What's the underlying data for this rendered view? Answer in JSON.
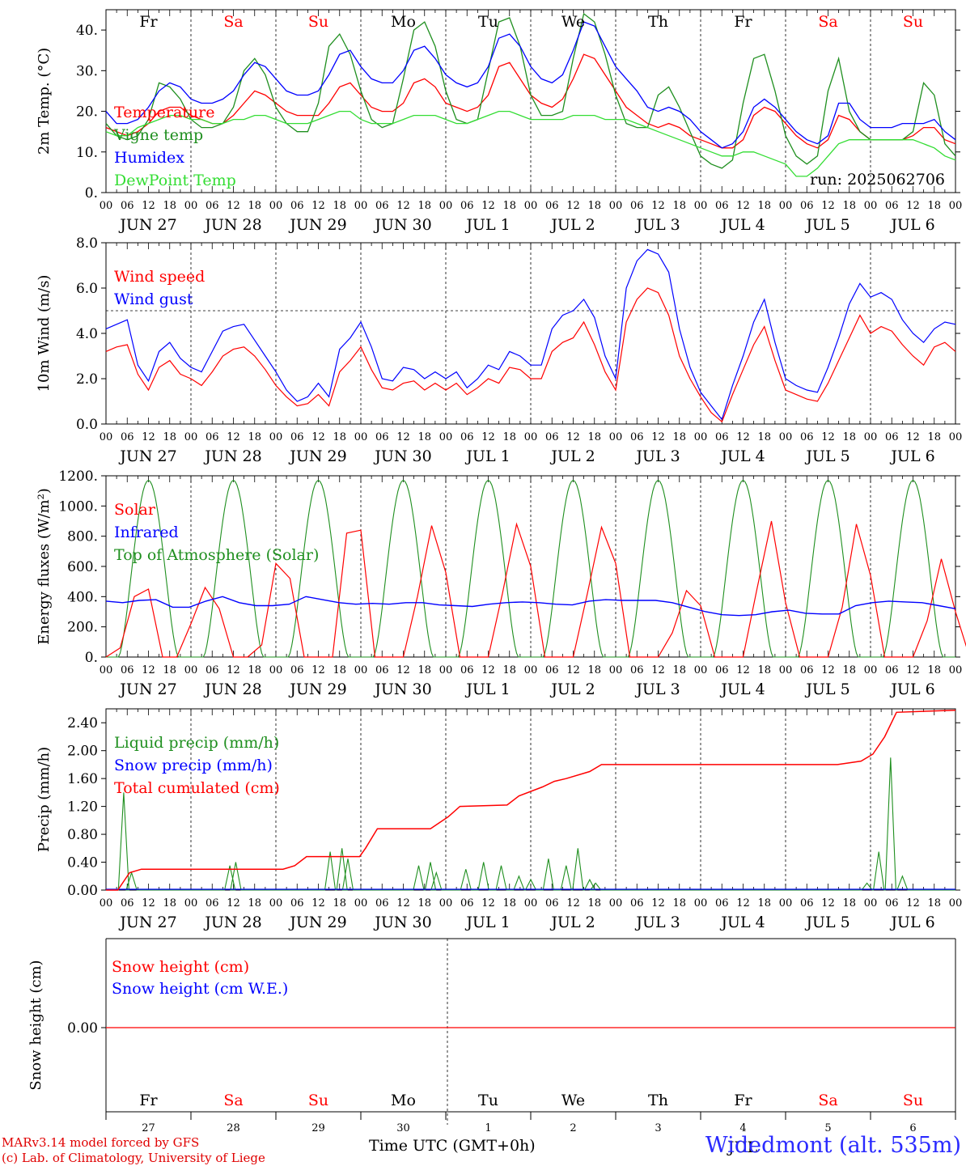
{
  "days_weekday": [
    "Fr",
    "Sa",
    "Su",
    "Mo",
    "Tu",
    "We",
    "Th",
    "Fr",
    "Sa",
    "Su"
  ],
  "weekend_days": [
    "Sa",
    "Su"
  ],
  "days_date": [
    "JUN 27",
    "JUN 28",
    "JUN 29",
    "JUN 30",
    "JUL 1",
    "JUL 2",
    "JUL 3",
    "JUL 4",
    "JUL 5",
    "JUL 6"
  ],
  "hour_ticks": [
    "00",
    "06",
    "12",
    "18"
  ],
  "last_tick": "00",
  "run_label": "run: 2025062706",
  "bottom_day_numbers": [
    "27",
    "28",
    "29",
    "30",
    "1",
    "2",
    "3",
    "4",
    "5",
    "6"
  ],
  "bottom_month": "JUL",
  "x_title": "Time UTC (GMT+0h)",
  "footer_model": "MARv3.14 model forced by GFS",
  "footer_lab": "(c) Lab. of Climatology, University of Liege",
  "location": "Widedmont (alt. 535m)",
  "colors": {
    "red": "#ff0000",
    "green": "#1f8f1f",
    "blue": "#0000ff",
    "lightgreen": "#33dd33"
  },
  "chart_data": [
    {
      "type": "line",
      "ylabel": "2m Temp. (°C)",
      "ylim": [
        0,
        45
      ],
      "yticks": [
        "0.",
        "10.",
        "20.",
        "30.",
        "40."
      ],
      "x": "hours since 2025-06-27 00 UTC, every 3h",
      "series": [
        {
          "name": "Temperature",
          "color": "red",
          "values": [
            16,
            15,
            14,
            15,
            17,
            20,
            21,
            21,
            19,
            18,
            17,
            17,
            19,
            22,
            25,
            24,
            22,
            20,
            19,
            19,
            19,
            22,
            26,
            27,
            24,
            21,
            20,
            20,
            22,
            27,
            28,
            26,
            22,
            21,
            20,
            21,
            24,
            31,
            32,
            28,
            24,
            22,
            21,
            23,
            28,
            34,
            33,
            29,
            25,
            21,
            19,
            17,
            16,
            17,
            16,
            14,
            13,
            12,
            11,
            11,
            13,
            19,
            21,
            20,
            17,
            14,
            12,
            11,
            13,
            19,
            18,
            15,
            13,
            13,
            13,
            13,
            14,
            16,
            16,
            13,
            12
          ]
        },
        {
          "name": "Vigne temp",
          "color": "green",
          "values": [
            17,
            14,
            13,
            14,
            18,
            27,
            26,
            23,
            18,
            16,
            16,
            17,
            21,
            30,
            33,
            29,
            21,
            17,
            15,
            15,
            22,
            36,
            39,
            34,
            25,
            18,
            16,
            17,
            28,
            40,
            42,
            36,
            25,
            18,
            17,
            18,
            30,
            42,
            43,
            36,
            24,
            19,
            19,
            20,
            33,
            44,
            42,
            34,
            24,
            17,
            16,
            16,
            24,
            26,
            21,
            15,
            9,
            7,
            6,
            8,
            22,
            33,
            34,
            25,
            14,
            9,
            7,
            9,
            25,
            33,
            20,
            15,
            13,
            13,
            13,
            13,
            15,
            27,
            24,
            12,
            9
          ]
        },
        {
          "name": "Humidex",
          "color": "blue",
          "values": [
            20,
            17,
            17,
            18,
            21,
            25,
            27,
            26,
            23,
            22,
            22,
            23,
            25,
            29,
            32,
            31,
            28,
            25,
            24,
            24,
            25,
            29,
            34,
            35,
            31,
            28,
            27,
            27,
            30,
            35,
            36,
            33,
            29,
            27,
            26,
            27,
            31,
            38,
            39,
            36,
            31,
            28,
            27,
            29,
            35,
            42,
            41,
            36,
            31,
            28,
            25,
            21,
            20,
            21,
            20,
            18,
            15,
            13,
            11,
            12,
            15,
            21,
            23,
            21,
            18,
            15,
            13,
            12,
            14,
            22,
            22,
            18,
            16,
            16,
            16,
            17,
            17,
            17,
            18,
            15,
            13
          ]
        },
        {
          "name": "DewPoint Temp",
          "color": "lightgreen",
          "values": [
            15,
            14,
            14,
            16,
            17,
            18,
            19,
            19,
            18,
            18,
            17,
            17,
            18,
            18,
            19,
            19,
            18,
            17,
            17,
            17,
            18,
            19,
            20,
            20,
            18,
            17,
            17,
            17,
            18,
            19,
            19,
            19,
            18,
            17,
            17,
            18,
            19,
            20,
            20,
            19,
            18,
            18,
            18,
            18,
            19,
            19,
            19,
            18,
            18,
            18,
            17,
            16,
            15,
            14,
            13,
            12,
            11,
            10,
            9,
            9,
            10,
            10,
            9,
            8,
            7,
            4,
            4,
            6,
            9,
            12,
            13,
            13,
            13,
            13,
            13,
            13,
            13,
            12,
            11,
            9,
            8
          ]
        }
      ]
    },
    {
      "type": "line",
      "ylabel": "10m Wind (m/s)",
      "ylim": [
        0,
        8
      ],
      "yticks": [
        "0.0",
        "2.0",
        "4.0",
        "6.0",
        "8.0"
      ],
      "reference_line": 5.0,
      "series": [
        {
          "name": "Wind speed",
          "color": "red",
          "values": [
            3.2,
            3.4,
            3.5,
            2.2,
            1.5,
            2.5,
            2.8,
            2.2,
            2.0,
            1.7,
            2.3,
            3.0,
            3.3,
            3.4,
            3.0,
            2.4,
            1.7,
            1.2,
            0.8,
            0.9,
            1.3,
            0.8,
            2.3,
            2.8,
            3.4,
            2.4,
            1.6,
            1.5,
            1.8,
            1.9,
            1.5,
            1.8,
            1.5,
            1.8,
            1.3,
            1.6,
            2.0,
            1.8,
            2.5,
            2.4,
            2.0,
            2.0,
            3.2,
            3.6,
            3.8,
            4.5,
            3.5,
            2.3,
            1.5,
            4.5,
            5.5,
            6.0,
            5.8,
            4.8,
            3.0,
            2.0,
            1.2,
            0.5,
            0.1,
            1.3,
            2.4,
            3.5,
            4.3,
            2.8,
            1.5,
            1.3,
            1.1,
            1.0,
            1.8,
            2.8,
            3.8,
            4.8,
            4.0,
            4.3,
            4.1,
            3.5,
            3.0,
            2.6,
            3.4,
            3.6,
            3.2
          ]
        },
        {
          "name": "Wind gust",
          "color": "blue",
          "values": [
            4.2,
            4.4,
            4.6,
            2.6,
            1.9,
            3.2,
            3.6,
            2.9,
            2.5,
            2.3,
            3.2,
            4.1,
            4.3,
            4.4,
            3.7,
            3.0,
            2.3,
            1.5,
            1.0,
            1.2,
            1.8,
            1.2,
            3.3,
            3.8,
            4.5,
            3.4,
            2.0,
            1.9,
            2.5,
            2.4,
            2.0,
            2.3,
            2.0,
            2.3,
            1.6,
            2.0,
            2.6,
            2.4,
            3.2,
            3.0,
            2.6,
            2.6,
            4.2,
            4.8,
            5.0,
            5.5,
            4.7,
            3.0,
            2.0,
            6.0,
            7.2,
            7.7,
            7.5,
            6.7,
            4.2,
            2.5,
            1.4,
            0.8,
            0.2,
            1.7,
            3.0,
            4.5,
            5.5,
            3.6,
            2.0,
            1.7,
            1.5,
            1.4,
            2.5,
            3.8,
            5.3,
            6.2,
            5.6,
            5.8,
            5.5,
            4.6,
            4.0,
            3.6,
            4.2,
            4.5,
            4.4
          ]
        }
      ]
    },
    {
      "type": "line",
      "ylabel": "Energy fluxes (W/m²)",
      "ylim": [
        0,
        1200
      ],
      "yticks": [
        "0.",
        "200.",
        "400.",
        "600.",
        "800.",
        "1000.",
        "1200."
      ],
      "series": [
        {
          "name": "Solar",
          "color": "red",
          "values": [
            0,
            60,
            400,
            450,
            0,
            0,
            220,
            460,
            320,
            0,
            0,
            80,
            620,
            520,
            0,
            0,
            0,
            820,
            840,
            0,
            0,
            0,
            400,
            870,
            560,
            0,
            0,
            0,
            420,
            880,
            600,
            0,
            0,
            0,
            420,
            860,
            620,
            0,
            0,
            0,
            160,
            440,
            340,
            0,
            0,
            0,
            460,
            900,
            360,
            0,
            0,
            0,
            330,
            880,
            540,
            0,
            0,
            0,
            240,
            650,
            300,
            0
          ]
        },
        {
          "name": "Infrared",
          "color": "blue",
          "values": [
            370,
            360,
            375,
            380,
            330,
            330,
            370,
            400,
            360,
            340,
            340,
            350,
            400,
            380,
            360,
            350,
            355,
            350,
            360,
            360,
            345,
            340,
            335,
            350,
            360,
            365,
            360,
            350,
            345,
            370,
            380,
            375,
            375,
            375,
            360,
            330,
            300,
            280,
            275,
            280,
            300,
            310,
            290,
            285,
            285,
            340,
            360,
            370,
            365,
            360,
            340,
            320
          ]
        },
        {
          "name": "Top of Atmosphere (Solar)",
          "color": "green",
          "peak": 1170
        }
      ]
    },
    {
      "type": "line",
      "ylabel": "Precip (mm/h)",
      "ylim": [
        0,
        2.6
      ],
      "yticks": [
        "0.00",
        "0.40",
        "0.80",
        "1.20",
        "1.60",
        "2.00",
        "2.40"
      ],
      "series": [
        {
          "name": "Liquid precip (mm/h)",
          "color": "green",
          "spikes": [
            [
              9,
              1.4
            ],
            [
              13,
              0.25
            ],
            [
              63,
              0.35
            ],
            [
              66,
              0.4
            ],
            [
              114,
              0.55
            ],
            [
              120,
              0.6
            ],
            [
              123,
              0.45
            ],
            [
              159,
              0.35
            ],
            [
              165,
              0.4
            ],
            [
              168,
              0.25
            ],
            [
              183,
              0.3
            ],
            [
              192,
              0.4
            ],
            [
              201,
              0.35
            ],
            [
              210,
              0.2
            ],
            [
              216,
              0.15
            ],
            [
              225,
              0.45
            ],
            [
              234,
              0.35
            ],
            [
              240,
              0.6
            ],
            [
              246,
              0.15
            ],
            [
              249,
              0.1
            ],
            [
              264,
              0.0
            ],
            [
              387,
              0.1
            ],
            [
              393,
              0.55
            ],
            [
              399,
              1.9
            ],
            [
              405,
              0.2
            ]
          ]
        },
        {
          "name": "Snow precip (mm/h)",
          "color": "blue",
          "values": []
        },
        {
          "name": "Total cumulated (cm)",
          "color": "red",
          "steps": [
            [
              0,
              0
            ],
            [
              6,
              0
            ],
            [
              12,
              0.25
            ],
            [
              18,
              0.3
            ],
            [
              90,
              0.3
            ],
            [
              96,
              0.35
            ],
            [
              102,
              0.48
            ],
            [
              129,
              0.48
            ],
            [
              132,
              0.6
            ],
            [
              138,
              0.88
            ],
            [
              165,
              0.88
            ],
            [
              174,
              1.05
            ],
            [
              180,
              1.2
            ],
            [
              204,
              1.22
            ],
            [
              210,
              1.35
            ],
            [
              222,
              1.48
            ],
            [
              228,
              1.56
            ],
            [
              234,
              1.6
            ],
            [
              246,
              1.7
            ],
            [
              252,
              1.8
            ],
            [
              372,
              1.8
            ],
            [
              384,
              1.85
            ],
            [
              390,
              1.95
            ],
            [
              396,
              2.2
            ],
            [
              402,
              2.55
            ],
            [
              432,
              2.58
            ]
          ]
        }
      ]
    },
    {
      "type": "line",
      "ylabel": "Snow height (cm)",
      "yticks": [
        "0.00"
      ],
      "series": [
        {
          "name": "Snow height (cm)",
          "color": "red",
          "values": [
            0,
            0
          ]
        },
        {
          "name": "Snow height (cm W.E.)",
          "color": "blue",
          "values": [
            0,
            0
          ]
        }
      ]
    }
  ]
}
